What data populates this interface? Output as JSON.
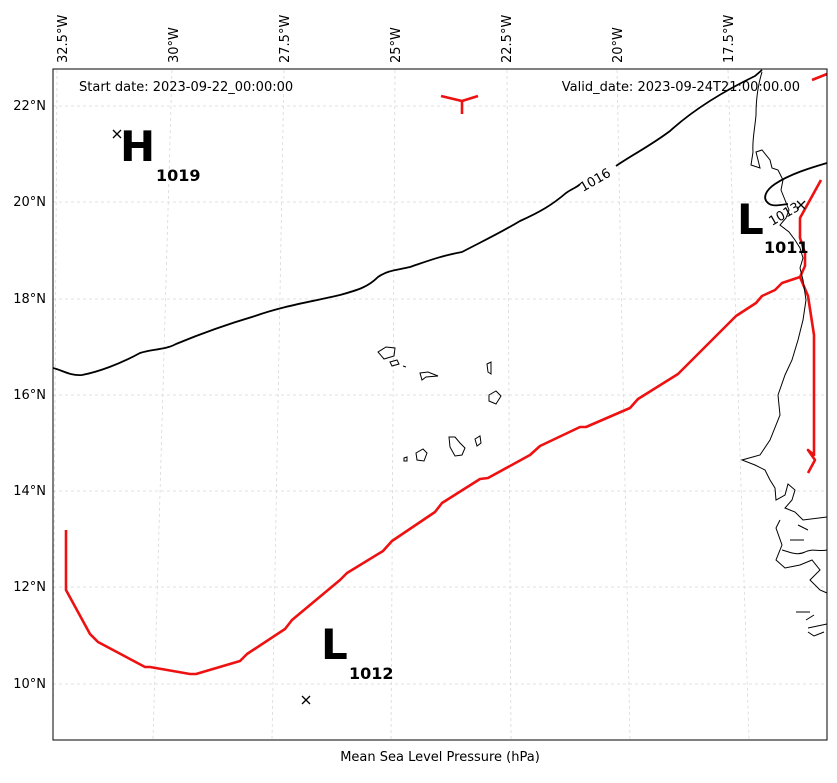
{
  "map": {
    "start_date": "Start date: 2023-09-22_00:00:00",
    "valid_date": "Valid_date: 2023-09-24T21:00:00.00",
    "xlabel": "Mean Sea Level Pressure (hPa)",
    "lon_labels": [
      "32.5°W",
      "30°W",
      "27.5°W",
      "25°W",
      "22.5°W",
      "20°W",
      "17.5°W"
    ],
    "lat_labels": [
      "22°N",
      "20°N",
      "18°N",
      "16°N",
      "14°N",
      "12°N",
      "10°N"
    ],
    "contour_label": "1016",
    "contour_label_2": "1013",
    "pressure_centers": [
      {
        "letter": "H",
        "value": "1019"
      },
      {
        "letter": "L",
        "value": "1011"
      },
      {
        "letter": "L",
        "value": "1012"
      }
    ],
    "colors": {
      "isobar": "#000000",
      "track": "#ee1111",
      "grid": "#d0d0d0",
      "coast": "#000000"
    }
  }
}
